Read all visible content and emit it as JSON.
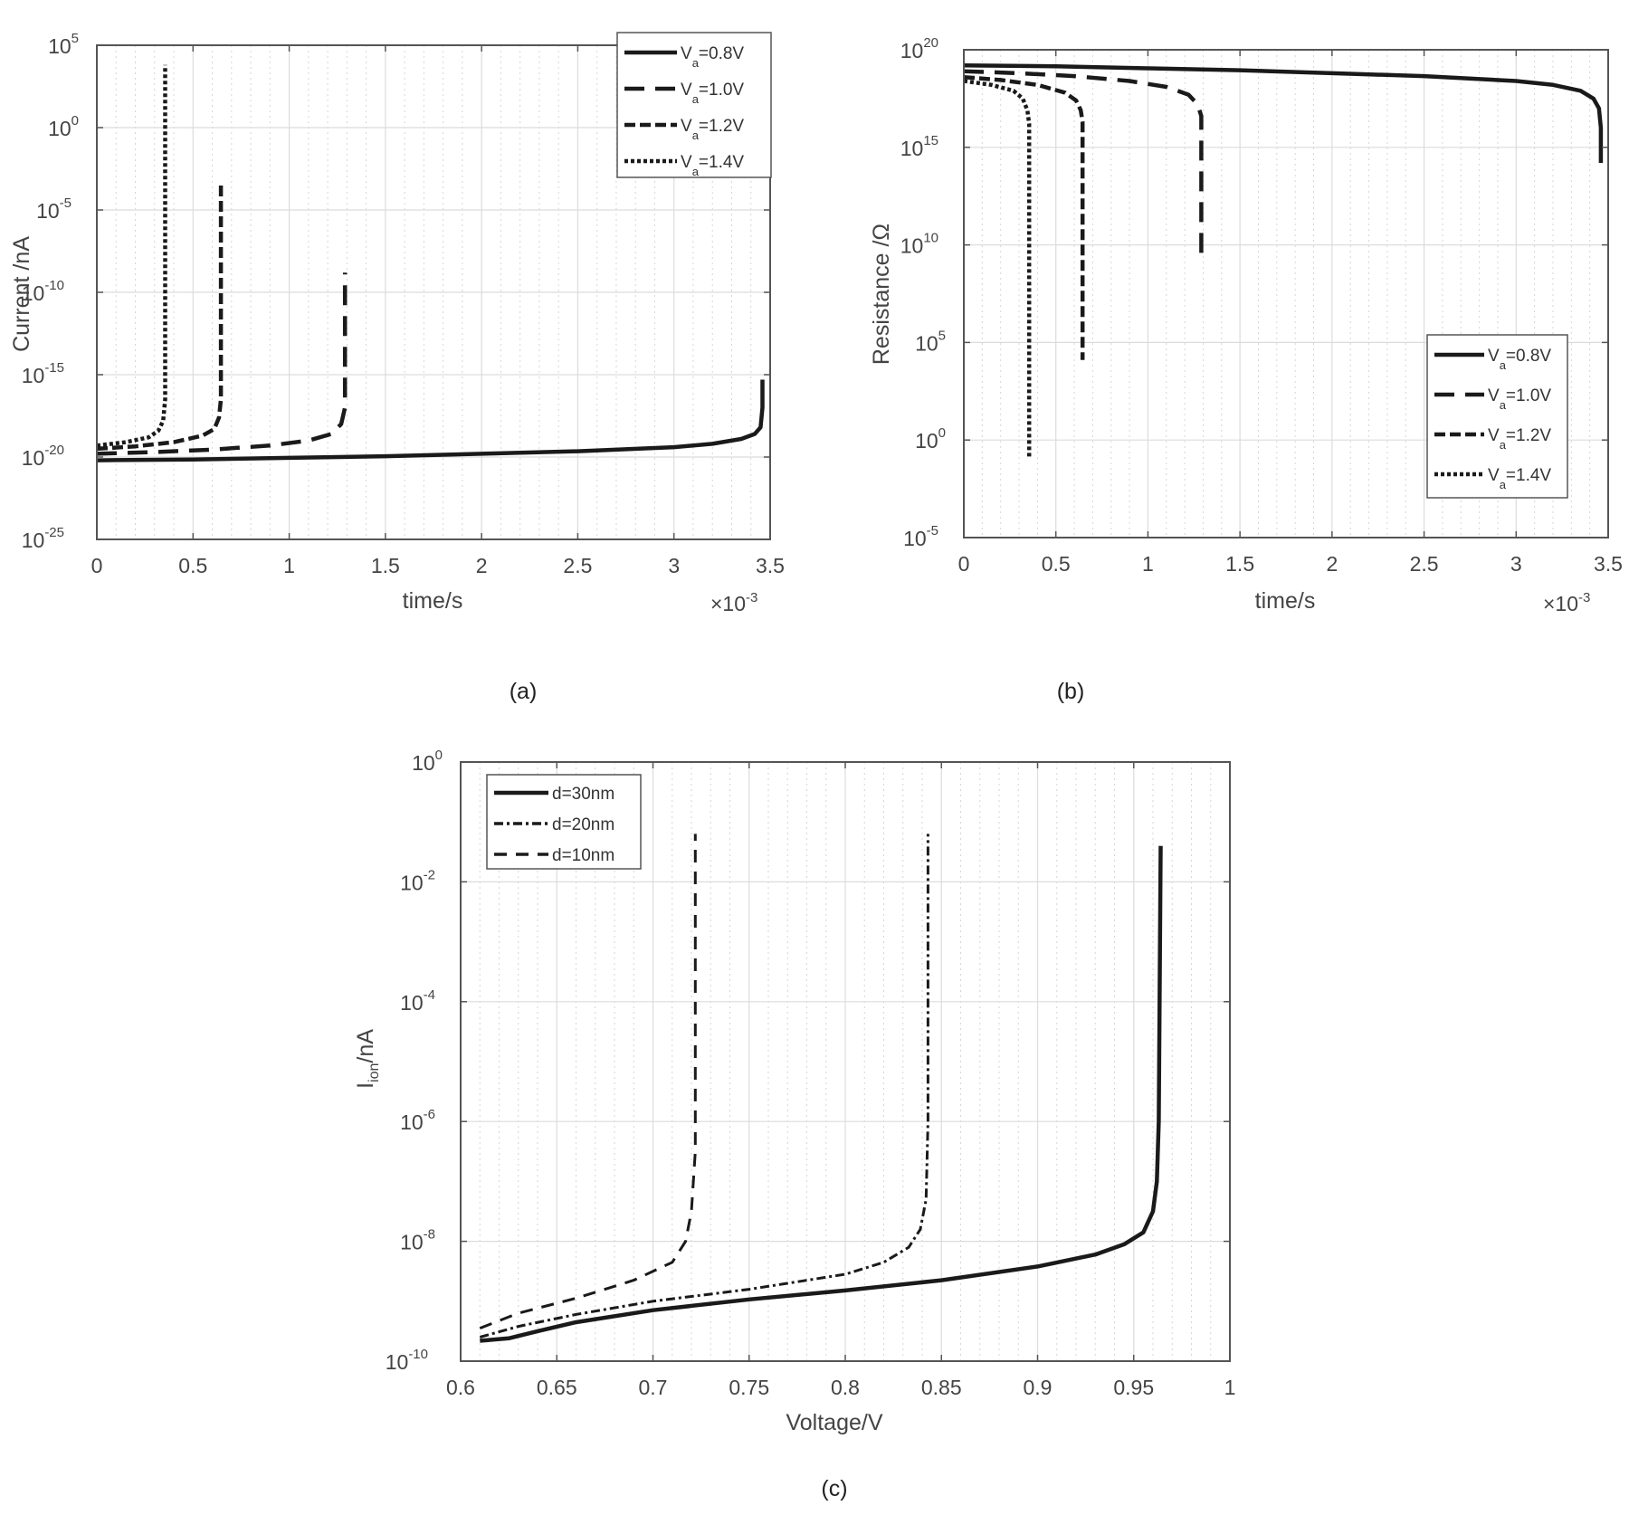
{
  "figure": {
    "captions": [
      "(a)",
      "(b)",
      "(c)"
    ]
  },
  "chart_data": [
    {
      "id": "a",
      "type": "line",
      "caption": "(a)",
      "title": "",
      "xlabel": "time/s",
      "x_multiplier": "×10-3",
      "x_multiplier_base": "×10",
      "x_multiplier_exp": "-3",
      "ylabel": "Current /nA",
      "yscale": "log",
      "xlim": [
        0,
        3.5
      ],
      "ylim_exp": [
        -25,
        5
      ],
      "x_ticks": [
        "0",
        "0.5",
        "1",
        "1.5",
        "2",
        "2.5",
        "3",
        "3.5"
      ],
      "y_ticks_exp": [
        "5",
        "0",
        "-5",
        "-10",
        "-15",
        "-20",
        "-25"
      ],
      "legend_position": "top-right",
      "grid": true,
      "series": [
        {
          "name": "Va=0.8V",
          "label_main": "V",
          "label_sub": "a",
          "label_rest": "=0.8V",
          "style": "solid",
          "x": [
            0,
            0.5,
            1.0,
            1.5,
            2.0,
            2.5,
            3.0,
            3.2,
            3.35,
            3.42,
            3.45,
            3.46,
            3.46
          ],
          "log10_y": [
            -20.2,
            -20.15,
            -20.05,
            -19.95,
            -19.8,
            -19.65,
            -19.4,
            -19.2,
            -18.9,
            -18.6,
            -18.2,
            -17,
            -15.3
          ]
        },
        {
          "name": "Va=1.0V",
          "label_main": "V",
          "label_sub": "a",
          "label_rest": "=1.0V",
          "style": "dash",
          "x": [
            0,
            0.3,
            0.6,
            0.9,
            1.1,
            1.22,
            1.27,
            1.29,
            1.29
          ],
          "log10_y": [
            -19.8,
            -19.7,
            -19.55,
            -19.3,
            -19.0,
            -18.6,
            -18.0,
            -17.0,
            -8.8
          ]
        },
        {
          "name": "Va=1.2V",
          "label_main": "V",
          "label_sub": "a",
          "label_rest": "=1.2V",
          "style": "dashdense",
          "x": [
            0,
            0.2,
            0.4,
            0.55,
            0.61,
            0.635,
            0.645,
            0.645
          ],
          "log10_y": [
            -19.5,
            -19.35,
            -19.1,
            -18.7,
            -18.3,
            -17.6,
            -16.5,
            -3.4
          ]
        },
        {
          "name": "Va=1.4V",
          "label_main": "V",
          "label_sub": "a",
          "label_rest": "=1.4V",
          "style": "dot",
          "x": [
            0,
            0.15,
            0.27,
            0.32,
            0.345,
            0.355,
            0.355
          ],
          "log10_y": [
            -19.3,
            -19.1,
            -18.8,
            -18.4,
            -17.8,
            -16.5,
            3.8
          ]
        }
      ]
    },
    {
      "id": "b",
      "type": "line",
      "caption": "(b)",
      "title": "",
      "xlabel": "time/s",
      "x_multiplier": "×10-3",
      "x_multiplier_base": "×10",
      "x_multiplier_exp": "-3",
      "ylabel": "Resistance /Ω",
      "yscale": "log",
      "xlim": [
        0,
        3.5
      ],
      "ylim_exp": [
        -5,
        20
      ],
      "x_ticks": [
        "0",
        "0.5",
        "1",
        "1.5",
        "2",
        "2.5",
        "3",
        "3.5"
      ],
      "y_ticks_exp": [
        "20",
        "15",
        "10",
        "5",
        "0",
        "-5"
      ],
      "legend_position": "bottom-right",
      "grid": true,
      "series": [
        {
          "name": "Va=0.8V",
          "label_main": "V",
          "label_sub": "a",
          "label_rest": "=0.8V",
          "style": "solid",
          "x": [
            0,
            0.5,
            1.0,
            1.5,
            2.0,
            2.5,
            3.0,
            3.2,
            3.35,
            3.42,
            3.45,
            3.46,
            3.46
          ],
          "log10_y": [
            19.2,
            19.15,
            19.05,
            18.95,
            18.8,
            18.65,
            18.4,
            18.2,
            17.9,
            17.5,
            17.0,
            16.0,
            14.2
          ]
        },
        {
          "name": "Va=1.0V",
          "label_main": "V",
          "label_sub": "a",
          "label_rest": "=1.0V",
          "style": "dash",
          "x": [
            0,
            0.3,
            0.6,
            0.9,
            1.1,
            1.22,
            1.27,
            1.29,
            1.29
          ],
          "log10_y": [
            18.9,
            18.8,
            18.65,
            18.4,
            18.1,
            17.7,
            17.2,
            16.6,
            9.2
          ]
        },
        {
          "name": "Va=1.2V",
          "label_main": "V",
          "label_sub": "a",
          "label_rest": "=1.2V",
          "style": "dashdense",
          "x": [
            0,
            0.2,
            0.4,
            0.55,
            0.61,
            0.635,
            0.645,
            0.645
          ],
          "log10_y": [
            18.6,
            18.45,
            18.2,
            17.8,
            17.4,
            16.9,
            16.3,
            4.1
          ]
        },
        {
          "name": "Va=1.4V",
          "label_main": "V",
          "label_sub": "a",
          "label_rest": "=1.4V",
          "style": "dot",
          "x": [
            0,
            0.15,
            0.27,
            0.32,
            0.345,
            0.355,
            0.355
          ],
          "log10_y": [
            18.4,
            18.2,
            17.9,
            17.5,
            16.9,
            16.2,
            -0.9
          ]
        }
      ]
    },
    {
      "id": "c",
      "type": "line",
      "caption": "(c)",
      "title": "",
      "xlabel": "Voltage/V",
      "ylabel": "Iion/nA",
      "ylabel_main": "I",
      "ylabel_sub": "ion",
      "ylabel_rest": "/nA",
      "yscale": "log",
      "xlim": [
        0.6,
        1.0
      ],
      "ylim_exp": [
        -10,
        0
      ],
      "x_ticks": [
        "0.6",
        "0.65",
        "0.7",
        "0.75",
        "0.8",
        "0.85",
        "0.9",
        "0.95",
        "1"
      ],
      "y_ticks_exp": [
        "0",
        "-2",
        "-4",
        "-6",
        "-8",
        "-10"
      ],
      "legend_position": "top-left",
      "grid": true,
      "series": [
        {
          "name": "d=30nm",
          "label": "d=30nm",
          "style": "solid",
          "x": [
            0.61,
            0.625,
            0.64,
            0.66,
            0.7,
            0.75,
            0.8,
            0.85,
            0.9,
            0.93,
            0.945,
            0.955,
            0.96,
            0.962,
            0.963,
            0.964
          ],
          "log10_y": [
            -9.66,
            -9.62,
            -9.5,
            -9.35,
            -9.15,
            -8.97,
            -8.82,
            -8.65,
            -8.42,
            -8.22,
            -8.05,
            -7.85,
            -7.5,
            -7.0,
            -6.0,
            -1.4
          ]
        },
        {
          "name": "d=20nm",
          "label": "d=20nm",
          "style": "dashdot",
          "x": [
            0.61,
            0.63,
            0.66,
            0.7,
            0.75,
            0.8,
            0.82,
            0.833,
            0.839,
            0.842,
            0.843,
            0.843
          ],
          "log10_y": [
            -9.6,
            -9.42,
            -9.22,
            -9.0,
            -8.8,
            -8.55,
            -8.35,
            -8.1,
            -7.8,
            -7.3,
            -6.0,
            -1.2
          ]
        },
        {
          "name": "d=10nm",
          "label": "d=10nm",
          "style": "dashlong",
          "x": [
            0.61,
            0.63,
            0.66,
            0.69,
            0.71,
            0.717,
            0.72,
            0.722,
            0.722
          ],
          "log10_y": [
            -9.45,
            -9.2,
            -8.95,
            -8.65,
            -8.35,
            -8.0,
            -7.5,
            -6.5,
            -1.2
          ]
        }
      ]
    }
  ]
}
